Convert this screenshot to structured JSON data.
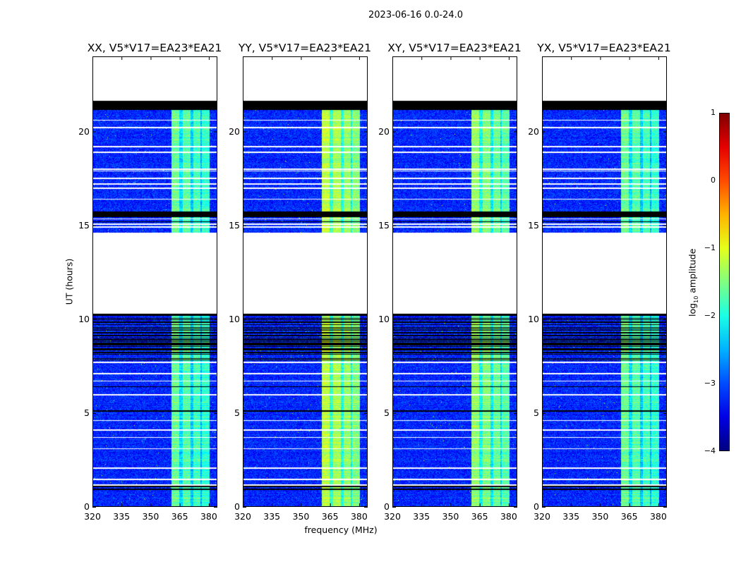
{
  "suptitle": "2023-06-16 0.0-24.0",
  "xlabel": "frequency (MHz)",
  "ylabel": "UT (hours)",
  "colorbar": {
    "label_prefix": "log",
    "label_sub": "10",
    "label_suffix": " amplitude",
    "range": [
      -4,
      1
    ],
    "ticks": [
      "1",
      "0",
      "−1",
      "−2",
      "−3",
      "−4"
    ],
    "tick_values": [
      1,
      0,
      -1,
      -2,
      -3,
      -4
    ],
    "colormap": "jet"
  },
  "chart_data": {
    "type": "heatmap",
    "title": "2023-06-16 0.0-24.0",
    "xlabel": "frequency (MHz)",
    "ylabel": "UT (hours)",
    "xlim": [
      320,
      384.4
    ],
    "ylim": [
      0,
      24
    ],
    "xticks": [
      "320",
      "335",
      "350",
      "365",
      "380"
    ],
    "xtick_values": [
      320,
      335,
      350,
      365,
      380
    ],
    "yticks": [
      "0",
      "5",
      "10",
      "15",
      "20"
    ],
    "ytick_values": [
      0,
      5,
      10,
      15,
      20
    ],
    "data_segments_hours": [
      [
        0,
        10.3
      ],
      [
        14.6,
        21.65
      ]
    ],
    "zero_bands_hours": [
      [
        21.15,
        21.65
      ],
      [
        15.45,
        15.75
      ],
      [
        7.8,
        10.3
      ]
    ],
    "zero_lines_hours": [
      0.95,
      1.1,
      5.1,
      6.4,
      15.2
    ],
    "flagged_lines_hours": [
      1.16,
      1.46,
      2.06,
      3.1,
      3.7,
      4.1,
      4.6,
      5.97,
      6.7,
      7.1,
      7.7,
      14.9,
      15.05,
      15.35,
      16.4,
      16.96,
      17.0,
      17.2,
      17.5,
      17.9,
      18.0,
      18.9,
      19.2,
      20.2,
      20.6
    ],
    "background_log_amplitude": -3.2,
    "subbands": [
      {
        "f0": 360.7,
        "f1": 364.8,
        "level": -1.6
      },
      {
        "f0": 364.8,
        "f1": 366.5,
        "level": -2.3
      },
      {
        "f0": 366.5,
        "f1": 370.5,
        "level": -1.7
      },
      {
        "f0": 370.5,
        "f1": 372.0,
        "level": -2.4
      },
      {
        "f0": 372.0,
        "f1": 375.5,
        "level": -1.8
      },
      {
        "f0": 375.5,
        "f1": 376.5,
        "level": -2.5
      },
      {
        "f0": 376.5,
        "f1": 380.4,
        "level": -1.9
      }
    ],
    "panels": [
      {
        "title": "XX, V5*V17=EA23*EA21",
        "band_offset": 0.0
      },
      {
        "title": "YY, V5*V17=EA23*EA21",
        "band_offset": 0.4
      },
      {
        "title": "XY, V5*V17=EA23*EA21",
        "band_offset": 0.2
      },
      {
        "title": "YX, V5*V17=EA23*EA21",
        "band_offset": 0.0
      }
    ]
  }
}
